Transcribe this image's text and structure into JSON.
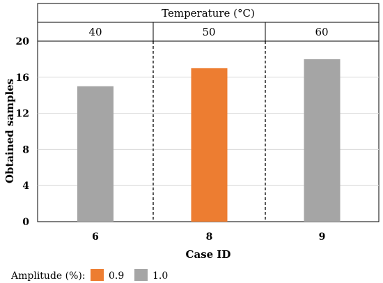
{
  "chart_data": {
    "type": "bar",
    "header": {
      "title": "Temperature (°C)",
      "groups": [
        "40",
        "50",
        "60"
      ]
    },
    "categories": [
      "6",
      "8",
      "9"
    ],
    "values": [
      15,
      17,
      18
    ],
    "bar_series": [
      "1.0",
      "0.9",
      "1.0"
    ],
    "xlabel": "Case ID",
    "ylabel": "Obtained samples",
    "ylim": [
      0,
      20
    ],
    "yticks": [
      "0",
      "4",
      "8",
      "12",
      "16",
      "20"
    ],
    "grid": true,
    "legend": {
      "title": "Amplitude (%):",
      "position": "bottom-left",
      "entries": [
        {
          "name": "0.9",
          "color": "#ED7D31"
        },
        {
          "name": "1.0",
          "color": "#A5A5A5"
        }
      ]
    }
  }
}
